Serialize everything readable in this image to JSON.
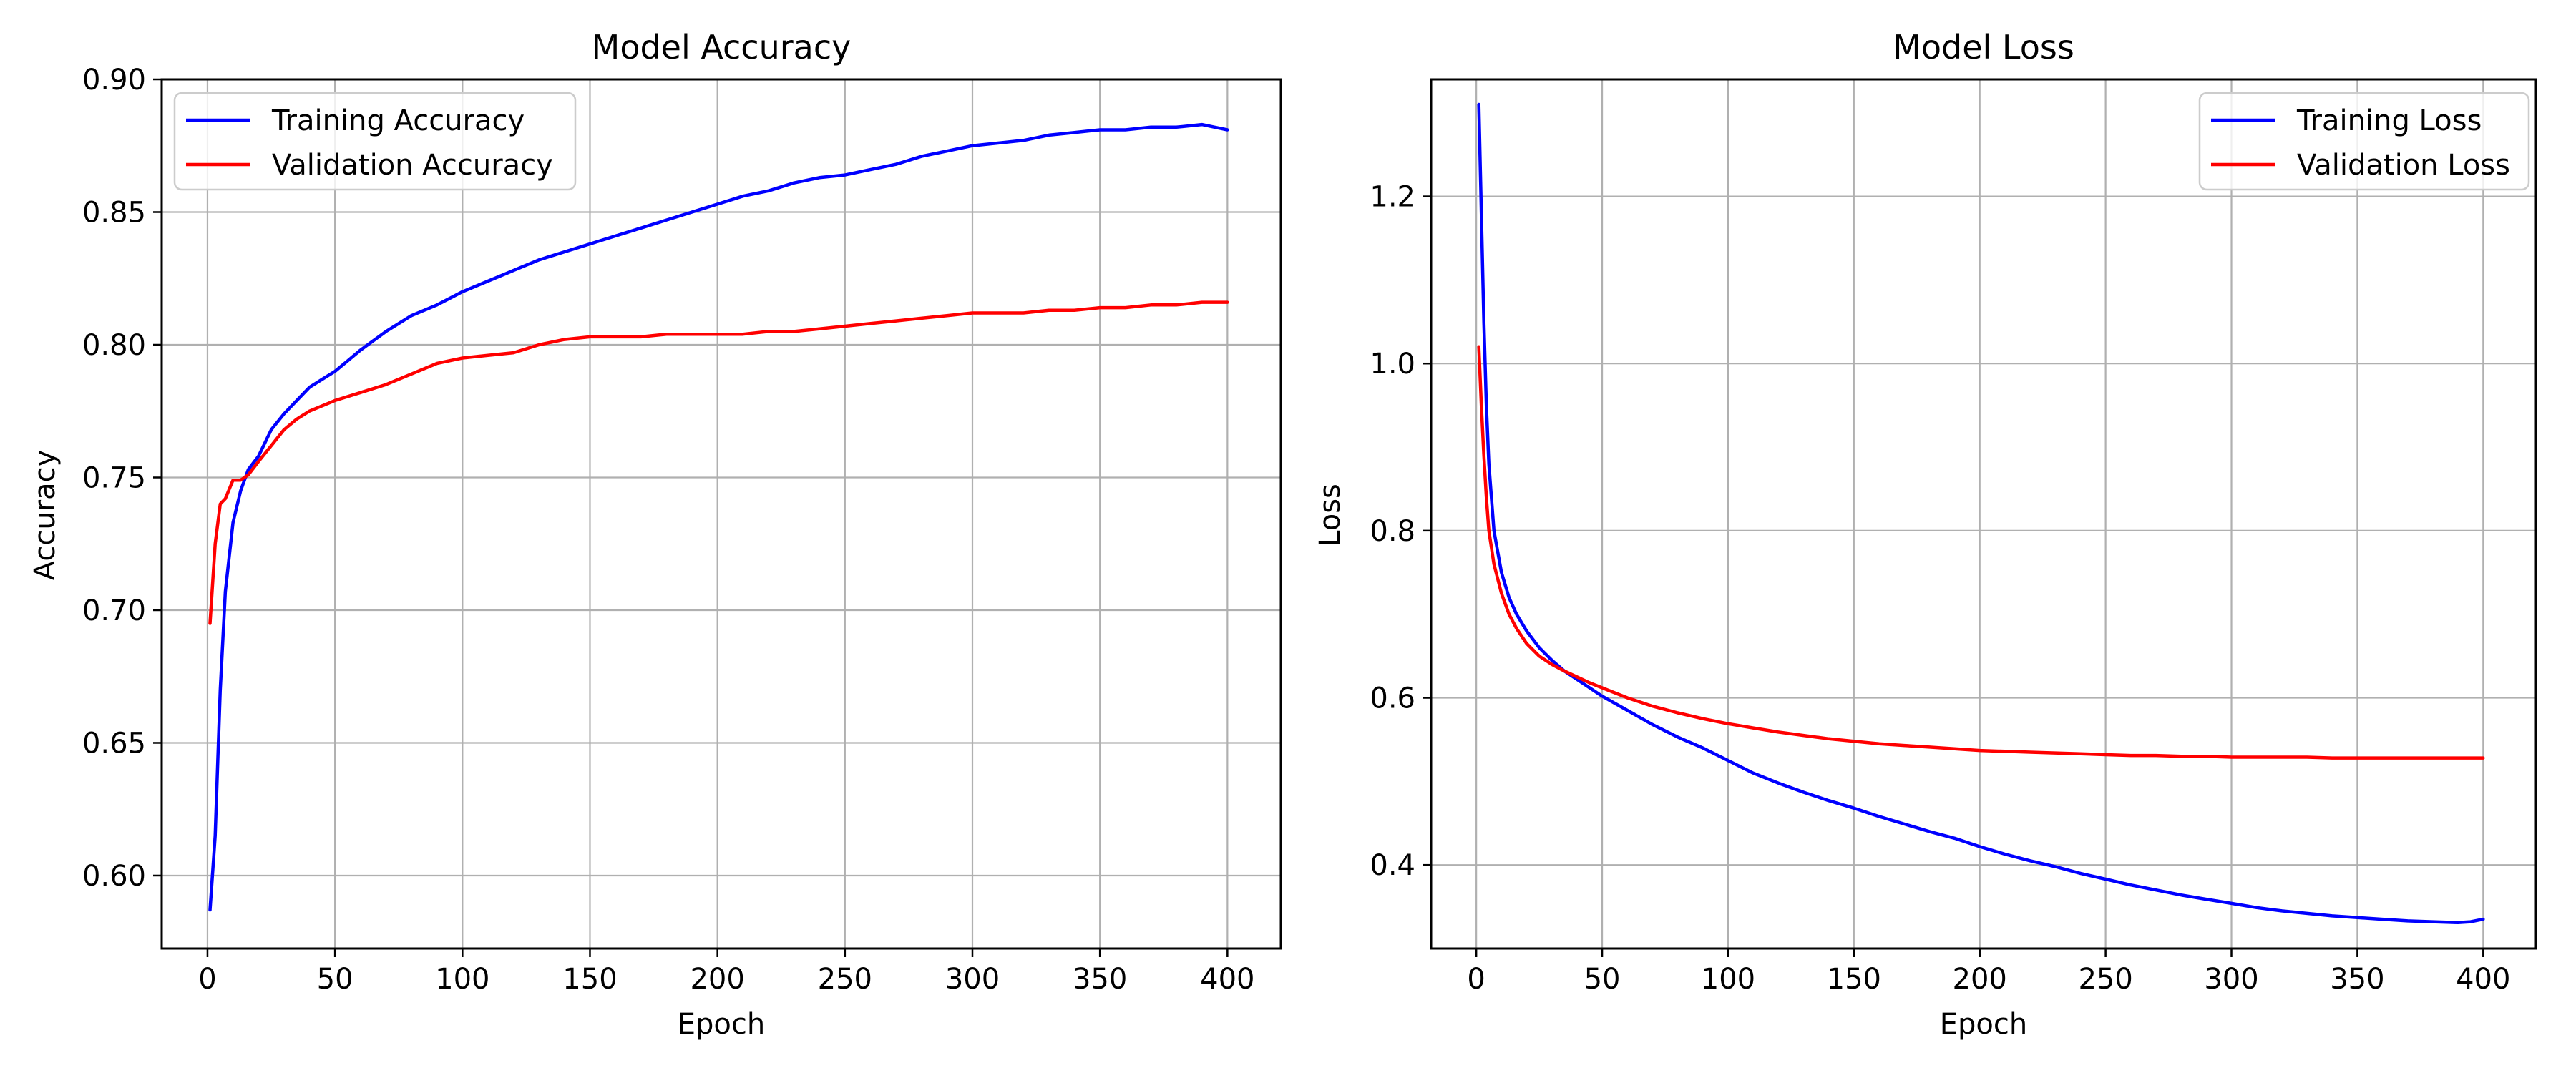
{
  "colors": {
    "training": "#0000ff",
    "validation": "#ff0000",
    "grid": "#b0b0b0",
    "axes": "#000000",
    "background": "#ffffff"
  },
  "chart_data": [
    {
      "type": "line",
      "title": "Model Accuracy",
      "xlabel": "Epoch",
      "ylabel": "Accuracy",
      "xlim": [
        -17.95,
        420.95
      ],
      "ylim": [
        0.5725,
        0.9
      ],
      "xticks": [
        0,
        50,
        100,
        150,
        200,
        250,
        300,
        350,
        400
      ],
      "yticks": [
        0.6,
        0.65,
        0.7,
        0.75,
        0.8,
        0.85,
        0.9
      ],
      "xtick_labels": [
        "0",
        "50",
        "100",
        "150",
        "200",
        "250",
        "300",
        "350",
        "400"
      ],
      "ytick_labels": [
        "0.60",
        "0.65",
        "0.70",
        "0.75",
        "0.80",
        "0.85",
        "0.90"
      ],
      "grid": true,
      "legend_position": "upper-left",
      "series": [
        {
          "name": "Training Accuracy",
          "color": "#0000ff",
          "x": [
            1,
            3,
            5,
            7,
            10,
            13,
            16,
            20,
            25,
            30,
            35,
            40,
            45,
            50,
            55,
            60,
            70,
            80,
            90,
            100,
            110,
            120,
            130,
            140,
            150,
            160,
            170,
            180,
            190,
            200,
            210,
            220,
            230,
            240,
            250,
            260,
            270,
            280,
            290,
            300,
            310,
            320,
            330,
            340,
            350,
            360,
            370,
            380,
            390,
            395,
            400
          ],
          "y": [
            0.587,
            0.615,
            0.67,
            0.707,
            0.733,
            0.745,
            0.753,
            0.758,
            0.768,
            0.774,
            0.779,
            0.784,
            0.787,
            0.79,
            0.794,
            0.798,
            0.805,
            0.811,
            0.815,
            0.82,
            0.824,
            0.828,
            0.832,
            0.835,
            0.838,
            0.841,
            0.844,
            0.847,
            0.85,
            0.853,
            0.856,
            0.858,
            0.861,
            0.863,
            0.864,
            0.866,
            0.868,
            0.871,
            0.873,
            0.875,
            0.876,
            0.877,
            0.879,
            0.88,
            0.881,
            0.881,
            0.882,
            0.882,
            0.883,
            0.882,
            0.881
          ]
        },
        {
          "name": "Validation Accuracy",
          "color": "#ff0000",
          "x": [
            1,
            3,
            5,
            7,
            10,
            13,
            16,
            20,
            25,
            30,
            35,
            40,
            50,
            60,
            70,
            80,
            90,
            100,
            110,
            120,
            130,
            140,
            150,
            160,
            170,
            180,
            190,
            200,
            210,
            220,
            230,
            240,
            250,
            260,
            270,
            280,
            290,
            300,
            310,
            320,
            330,
            340,
            350,
            360,
            370,
            380,
            390,
            400
          ],
          "y": [
            0.695,
            0.725,
            0.74,
            0.742,
            0.749,
            0.749,
            0.751,
            0.756,
            0.762,
            0.768,
            0.772,
            0.775,
            0.779,
            0.782,
            0.785,
            0.789,
            0.793,
            0.795,
            0.796,
            0.797,
            0.8,
            0.802,
            0.803,
            0.803,
            0.803,
            0.804,
            0.804,
            0.804,
            0.804,
            0.805,
            0.805,
            0.806,
            0.807,
            0.808,
            0.809,
            0.81,
            0.811,
            0.812,
            0.812,
            0.812,
            0.813,
            0.813,
            0.814,
            0.814,
            0.815,
            0.815,
            0.816,
            0.816
          ]
        }
      ]
    },
    {
      "type": "line",
      "title": "Model Loss",
      "xlabel": "Epoch",
      "ylabel": "Loss",
      "xlim": [
        -17.95,
        420.95
      ],
      "ylim": [
        0.3,
        1.34
      ],
      "xticks": [
        0,
        50,
        100,
        150,
        200,
        250,
        300,
        350,
        400
      ],
      "yticks": [
        0.4,
        0.6,
        0.8,
        1.0,
        1.2
      ],
      "xtick_labels": [
        "0",
        "50",
        "100",
        "150",
        "200",
        "250",
        "300",
        "350",
        "400"
      ],
      "ytick_labels": [
        "0.4",
        "0.6",
        "0.8",
        "1.0",
        "1.2"
      ],
      "grid": true,
      "legend_position": "upper-right",
      "series": [
        {
          "name": "Training Loss",
          "color": "#0000ff",
          "x": [
            1,
            2,
            3,
            4,
            5,
            7,
            10,
            13,
            16,
            20,
            25,
            30,
            35,
            40,
            45,
            50,
            60,
            70,
            80,
            90,
            100,
            110,
            120,
            130,
            140,
            150,
            160,
            170,
            180,
            190,
            200,
            210,
            220,
            230,
            240,
            250,
            260,
            270,
            280,
            290,
            300,
            310,
            320,
            330,
            340,
            350,
            360,
            370,
            380,
            390,
            395,
            400
          ],
          "y": [
            1.31,
            1.18,
            1.05,
            0.95,
            0.88,
            0.8,
            0.75,
            0.72,
            0.7,
            0.68,
            0.66,
            0.645,
            0.632,
            0.622,
            0.612,
            0.602,
            0.585,
            0.568,
            0.553,
            0.54,
            0.525,
            0.51,
            0.498,
            0.487,
            0.477,
            0.468,
            0.458,
            0.449,
            0.44,
            0.432,
            0.422,
            0.413,
            0.405,
            0.398,
            0.39,
            0.383,
            0.376,
            0.37,
            0.364,
            0.359,
            0.354,
            0.349,
            0.345,
            0.342,
            0.339,
            0.337,
            0.335,
            0.333,
            0.332,
            0.331,
            0.332,
            0.335
          ]
        },
        {
          "name": "Validation Loss",
          "color": "#ff0000",
          "x": [
            1,
            2,
            3,
            4,
            5,
            7,
            10,
            13,
            16,
            20,
            25,
            30,
            35,
            40,
            45,
            50,
            60,
            70,
            80,
            90,
            100,
            110,
            120,
            130,
            140,
            150,
            160,
            170,
            180,
            190,
            200,
            210,
            220,
            230,
            240,
            250,
            260,
            270,
            280,
            290,
            300,
            310,
            320,
            330,
            340,
            350,
            360,
            370,
            380,
            390,
            400
          ],
          "y": [
            1.02,
            0.95,
            0.89,
            0.84,
            0.8,
            0.76,
            0.725,
            0.7,
            0.683,
            0.665,
            0.65,
            0.64,
            0.632,
            0.625,
            0.618,
            0.612,
            0.6,
            0.59,
            0.582,
            0.575,
            0.569,
            0.564,
            0.559,
            0.555,
            0.551,
            0.548,
            0.545,
            0.543,
            0.541,
            0.539,
            0.537,
            0.536,
            0.535,
            0.534,
            0.533,
            0.532,
            0.531,
            0.531,
            0.53,
            0.53,
            0.529,
            0.529,
            0.529,
            0.529,
            0.528,
            0.528,
            0.528,
            0.528,
            0.528,
            0.528,
            0.528
          ]
        }
      ]
    }
  ]
}
